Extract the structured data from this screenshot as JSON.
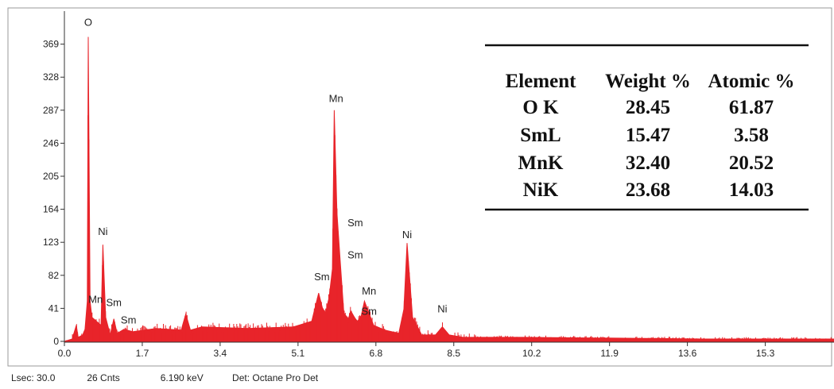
{
  "chart_data": {
    "type": "area",
    "title": "",
    "xlabel": "",
    "ylabel": "",
    "xlim": [
      0.0,
      16.8
    ],
    "ylim": [
      0,
      410
    ],
    "x_ticks": [
      "0.0",
      "1.7",
      "3.4",
      "5.1",
      "6.8",
      "8.5",
      "10.2",
      "11.9",
      "13.6",
      "15.3"
    ],
    "y_ticks": [
      "0",
      "41",
      "82",
      "123",
      "164",
      "205",
      "246",
      "287",
      "328",
      "369"
    ],
    "series_color": "#e8242a",
    "x": [
      0.0,
      0.17,
      0.26,
      0.3,
      0.4,
      0.45,
      0.5,
      0.52,
      0.56,
      0.6,
      0.7,
      0.8,
      0.84,
      0.9,
      1.0,
      1.08,
      1.15,
      1.3,
      1.5,
      2.0,
      2.55,
      2.65,
      2.75,
      3.0,
      4.0,
      5.0,
      5.4,
      5.55,
      5.63,
      5.7,
      5.78,
      5.85,
      5.89,
      5.95,
      6.02,
      6.1,
      6.2,
      6.25,
      6.35,
      6.4,
      6.48,
      6.55,
      6.65,
      6.75,
      7.0,
      7.3,
      7.41,
      7.48,
      7.6,
      7.8,
      8.1,
      8.25,
      8.4,
      8.7,
      10.0,
      12.0,
      14.0,
      16.8
    ],
    "y": [
      0,
      3,
      20,
      5,
      8,
      15,
      50,
      378,
      50,
      30,
      25,
      20,
      120,
      30,
      8,
      28,
      10,
      15,
      12,
      16,
      14,
      34,
      14,
      18,
      16,
      18,
      25,
      60,
      42,
      35,
      55,
      90,
      287,
      160,
      100,
      35,
      28,
      38,
      28,
      25,
      32,
      50,
      35,
      20,
      14,
      10,
      40,
      122,
      30,
      8,
      8,
      18,
      8,
      5,
      5,
      4,
      3,
      3
    ],
    "peak_labels": [
      {
        "text": "O",
        "x": 0.52,
        "y": 392
      },
      {
        "text": "Ni",
        "x": 0.84,
        "y": 132
      },
      {
        "text": "Mn",
        "x": 0.68,
        "y": 48
      },
      {
        "text": "Sm",
        "x": 1.08,
        "y": 44
      },
      {
        "text": "Sm",
        "x": 1.4,
        "y": 22
      },
      {
        "text": "Mn",
        "x": 5.93,
        "y": 297
      },
      {
        "text": "Sm",
        "x": 6.35,
        "y": 143
      },
      {
        "text": "Sm",
        "x": 6.35,
        "y": 103
      },
      {
        "text": "Sm",
        "x": 5.62,
        "y": 76
      },
      {
        "text": "Mn",
        "x": 6.65,
        "y": 58
      },
      {
        "text": "Sm",
        "x": 6.65,
        "y": 33
      },
      {
        "text": "Ni",
        "x": 7.48,
        "y": 128
      },
      {
        "text": "Ni",
        "x": 8.25,
        "y": 36
      }
    ],
    "table": {
      "headers": [
        "Element",
        "Weight %",
        "Atomic %"
      ],
      "rows": [
        [
          "O K",
          "28.45",
          "61.87"
        ],
        [
          "SmL",
          "15.47",
          "3.58"
        ],
        [
          "MnK",
          "32.40",
          "20.52"
        ],
        [
          "NiK",
          "23.68",
          "14.03"
        ]
      ]
    }
  },
  "status": {
    "lsec": "Lsec: 30.0",
    "cnts": "26 Cnts",
    "kev": "6.190 keV",
    "det": "Det: Octane Pro Det"
  }
}
